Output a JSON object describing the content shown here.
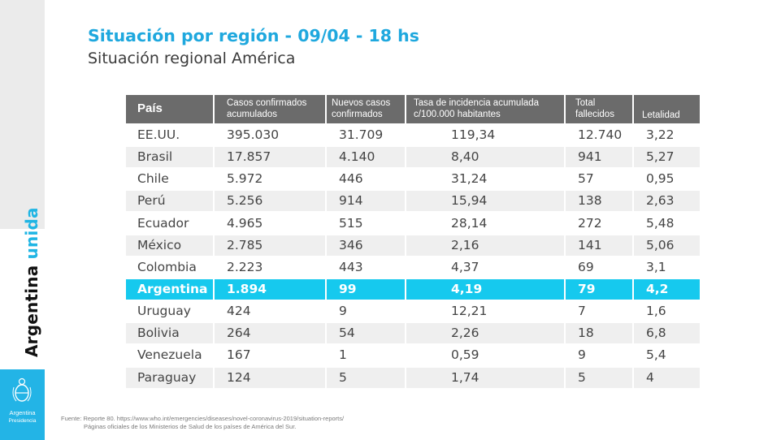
{
  "title": "Situación por región - 09/04 - 18 hs",
  "subtitle": "Situación regional América",
  "brand": {
    "word1": "Argentina",
    "word2": "unida",
    "seal_line1": "Argentina",
    "seal_line2": "Presidencia"
  },
  "table": {
    "headers": [
      "País",
      "Casos confirmados acumulados",
      "Nuevos casos confirmados",
      "Tasa de incidencia acumulada c/100.000 habitantes",
      "Total fallecidos",
      "Letalidad"
    ],
    "rows": [
      [
        "EE.UU.",
        "395.030",
        "31.709",
        "119,34",
        "12.740",
        "3,22"
      ],
      [
        "Brasil",
        "17.857",
        "4.140",
        "8,40",
        "941",
        "5,27"
      ],
      [
        "Chile",
        "5.972",
        "446",
        "31,24",
        "57",
        "0,95"
      ],
      [
        "Perú",
        "5.256",
        "914",
        "15,94",
        "138",
        "2,63"
      ],
      [
        "Ecuador",
        "4.965",
        "515",
        "28,14",
        "272",
        "5,48"
      ],
      [
        "México",
        "2.785",
        "346",
        "2,16",
        "141",
        "5,06"
      ],
      [
        "Colombia",
        "2.223",
        "443",
        "4,37",
        "69",
        "3,1"
      ],
      [
        "Argentina",
        "1.894",
        "99",
        "4,19",
        "79",
        "4,2"
      ],
      [
        "Uruguay",
        "424",
        "9",
        "12,21",
        "7",
        "1,6"
      ],
      [
        "Bolivia",
        "264",
        "54",
        "2,26",
        "18",
        "6,8"
      ],
      [
        "Venezuela",
        "167",
        "1",
        "0,59",
        "9",
        "5,4"
      ],
      [
        "Paraguay",
        "124",
        "5",
        "1,74",
        "5",
        "4"
      ]
    ],
    "highlight_row": "Argentina"
  },
  "footer": {
    "line1": "Fuente: Reporte 80. https://www.who.int/emergencies/diseases/novel-coronavirus-2019/situation-reports/",
    "line2": "Páginas oficiales de los Ministerios de Salud de los países de América del Sur."
  },
  "colors": {
    "accent": "#1fa8de",
    "highlight": "#16c9ee",
    "header_bg": "#6b6b6b",
    "sidebar_blue": "#23b4e6"
  }
}
